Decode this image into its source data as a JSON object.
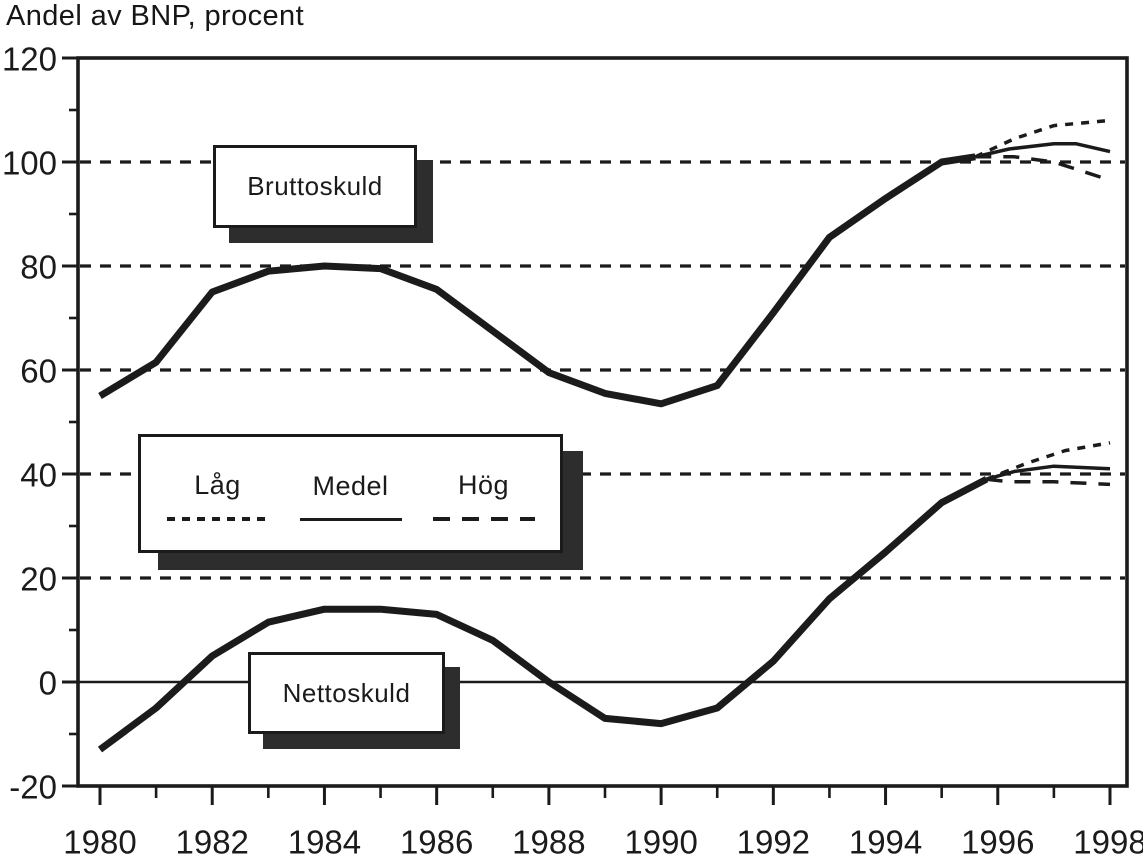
{
  "title": "Andel av BNP, procent",
  "colors": {
    "ink": "#1b1b1b",
    "paper": "#ffffff",
    "shadow": "#2d2d2d"
  },
  "labels": {
    "gross": "Bruttoskuld",
    "net": "Nettoskuld"
  },
  "legend": {
    "items": [
      {
        "label": "Låg",
        "style": "fine-dash"
      },
      {
        "label": "Medel",
        "style": "solid"
      },
      {
        "label": "Hög",
        "style": "long-dash"
      }
    ]
  },
  "chart_data": {
    "type": "line",
    "title": "Andel av BNP, procent",
    "ylabel": "Andel av BNP, procent",
    "xlabel": "",
    "x_axis": {
      "min": 1980,
      "max": 1998,
      "major_ticks": [
        1980,
        1982,
        1984,
        1986,
        1988,
        1990,
        1992,
        1994,
        1996,
        1998
      ],
      "minor_ticks": [
        1981,
        1983,
        1985,
        1987,
        1989,
        1991,
        1993,
        1995,
        1997
      ]
    },
    "y_axis": {
      "min": -20,
      "max": 120,
      "major_ticks": [
        120,
        100,
        80,
        60,
        40,
        20,
        0,
        -20
      ],
      "minor_ticks": [
        110,
        90,
        70,
        50,
        30,
        10,
        -10
      ]
    },
    "gridlines": {
      "dashed": [
        100,
        80,
        60,
        40,
        20
      ],
      "solid": [
        0
      ]
    },
    "legend_position": "middle-left box",
    "series": [
      {
        "name": "Bruttoskuld",
        "history": [
          [
            1980,
            55
          ],
          [
            1981,
            61.5
          ],
          [
            1982,
            75
          ],
          [
            1983,
            79
          ],
          [
            1984,
            80
          ],
          [
            1985,
            79.5
          ],
          [
            1986,
            75.5
          ],
          [
            1987,
            67.5
          ],
          [
            1988,
            59.5
          ],
          [
            1989,
            55.5
          ],
          [
            1990,
            53.5
          ],
          [
            1991,
            57
          ],
          [
            1992,
            71
          ],
          [
            1993,
            85.5
          ],
          [
            1994,
            93
          ],
          [
            1995,
            100
          ],
          [
            1995.6,
            101
          ]
        ],
        "scenarios": [
          {
            "name": "Låg",
            "style": "fine-dash",
            "points": [
              [
                1995.6,
                101
              ],
              [
                1996.3,
                104.5
              ],
              [
                1997,
                107
              ],
              [
                1998,
                108
              ]
            ]
          },
          {
            "name": "Medel",
            "style": "solid",
            "points": [
              [
                1995.6,
                101
              ],
              [
                1996.2,
                102.5
              ],
              [
                1997,
                103.5
              ],
              [
                1997.4,
                103.5
              ],
              [
                1998,
                102
              ]
            ]
          },
          {
            "name": "Hög",
            "style": "long-dash",
            "points": [
              [
                1995.6,
                101
              ],
              [
                1996.3,
                101
              ],
              [
                1997,
                100
              ],
              [
                1998,
                96.5
              ]
            ]
          }
        ]
      },
      {
        "name": "Nettoskuld",
        "history": [
          [
            1980,
            -13
          ],
          [
            1981,
            -5
          ],
          [
            1982,
            5
          ],
          [
            1983,
            11.5
          ],
          [
            1984,
            14
          ],
          [
            1985,
            14
          ],
          [
            1986,
            13
          ],
          [
            1987,
            8
          ],
          [
            1988,
            0
          ],
          [
            1989,
            -7
          ],
          [
            1990,
            -8
          ],
          [
            1991,
            -5
          ],
          [
            1992,
            4
          ],
          [
            1993,
            16
          ],
          [
            1994,
            25
          ],
          [
            1995,
            34.5
          ],
          [
            1995.8,
            39
          ]
        ],
        "scenarios": [
          {
            "name": "Låg",
            "style": "fine-dash",
            "points": [
              [
                1995.8,
                39
              ],
              [
                1996.5,
                42
              ],
              [
                1997.2,
                44.5
              ],
              [
                1998,
                46
              ]
            ]
          },
          {
            "name": "Medel",
            "style": "solid",
            "points": [
              [
                1995.8,
                39
              ],
              [
                1996.3,
                40.5
              ],
              [
                1997,
                41.5
              ],
              [
                1998,
                41
              ]
            ]
          },
          {
            "name": "Hög",
            "style": "long-dash",
            "points": [
              [
                1995.8,
                39
              ],
              [
                1996.2,
                38.5
              ],
              [
                1997,
                38.5
              ],
              [
                1998,
                38
              ]
            ]
          }
        ]
      }
    ]
  }
}
